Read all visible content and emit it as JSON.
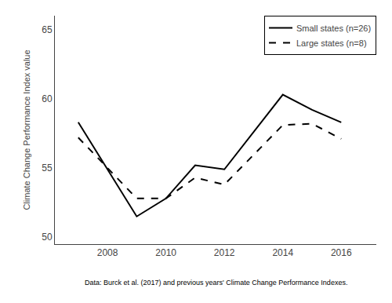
{
  "chart_data": {
    "type": "line",
    "ylabel": "Climate Change Performance Index value",
    "caption": "Data: Burck et al. (2017) and previous years' Climate Change Performance Indexes.",
    "series": [
      {
        "name": "Small states (n=26)",
        "color": "#000000",
        "line_style": "solid",
        "x": [
          2007,
          2009,
          2010,
          2011,
          2012,
          2014,
          2015,
          2016
        ],
        "values": [
          58.3,
          51.5,
          52.8,
          55.2,
          54.9,
          60.3,
          59.2,
          58.3
        ]
      },
      {
        "name": "Large states (n=8)",
        "color": "#000000",
        "line_style": "dashed",
        "x": [
          2007,
          2009,
          2010,
          2011,
          2012,
          2014,
          2015,
          2016
        ],
        "values": [
          57.2,
          52.8,
          52.8,
          54.3,
          53.8,
          58.1,
          58.2,
          57.1
        ]
      }
    ],
    "xlim": [
      2006.2,
      2017.2
    ],
    "xticks": [
      2008,
      2010,
      2012,
      2014,
      2016
    ],
    "ylim": [
      49.5,
      66
    ],
    "yticks": [
      50,
      55,
      60,
      65
    ],
    "grid": false,
    "legend": "upper right"
  }
}
